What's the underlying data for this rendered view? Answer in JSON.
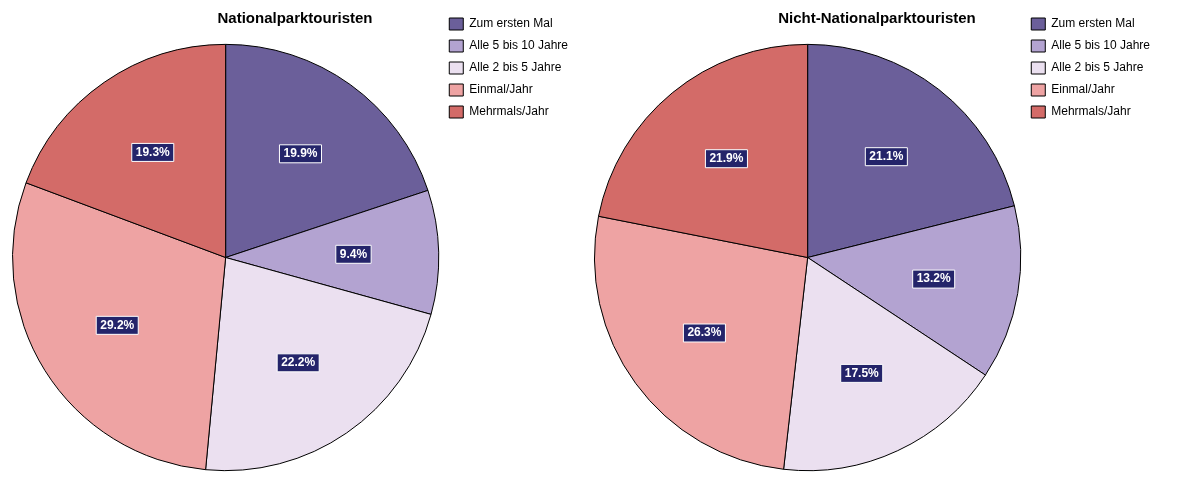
{
  "chart_data": [
    {
      "type": "pie",
      "title": "Nationalparktouristen",
      "categories": [
        "Zum ersten Mal",
        "Alle 5 bis 10 Jahre",
        "Alle 2 bis 5 Jahre",
        "Einmal/Jahr",
        "Mehrmals/Jahr"
      ],
      "values": [
        19.9,
        9.4,
        22.2,
        29.2,
        19.3
      ],
      "value_labels": [
        "19.9%",
        "9.4%",
        "22.2%",
        "29.2%",
        "19.3%"
      ],
      "colors": [
        "#6b5f9a",
        "#b3a3d1",
        "#ebe0f0",
        "#eea3a3",
        "#d36b68"
      ],
      "legend": "top right"
    },
    {
      "type": "pie",
      "title": "Nicht-Nationalparktouristen",
      "categories": [
        "Zum ersten Mal",
        "Alle 5 bis 10 Jahre",
        "Alle 2 bis 5 Jahre",
        "Einmal/Jahr",
        "Mehrmals/Jahr"
      ],
      "values": [
        21.1,
        13.2,
        17.5,
        26.3,
        21.9
      ],
      "value_labels": [
        "21.1%",
        "13.2%",
        "17.5%",
        "26.3%",
        "21.9%"
      ],
      "colors": [
        "#6b5f9a",
        "#b3a3d1",
        "#ebe0f0",
        "#eea3a3",
        "#d36b68"
      ],
      "legend": "top right"
    }
  ]
}
